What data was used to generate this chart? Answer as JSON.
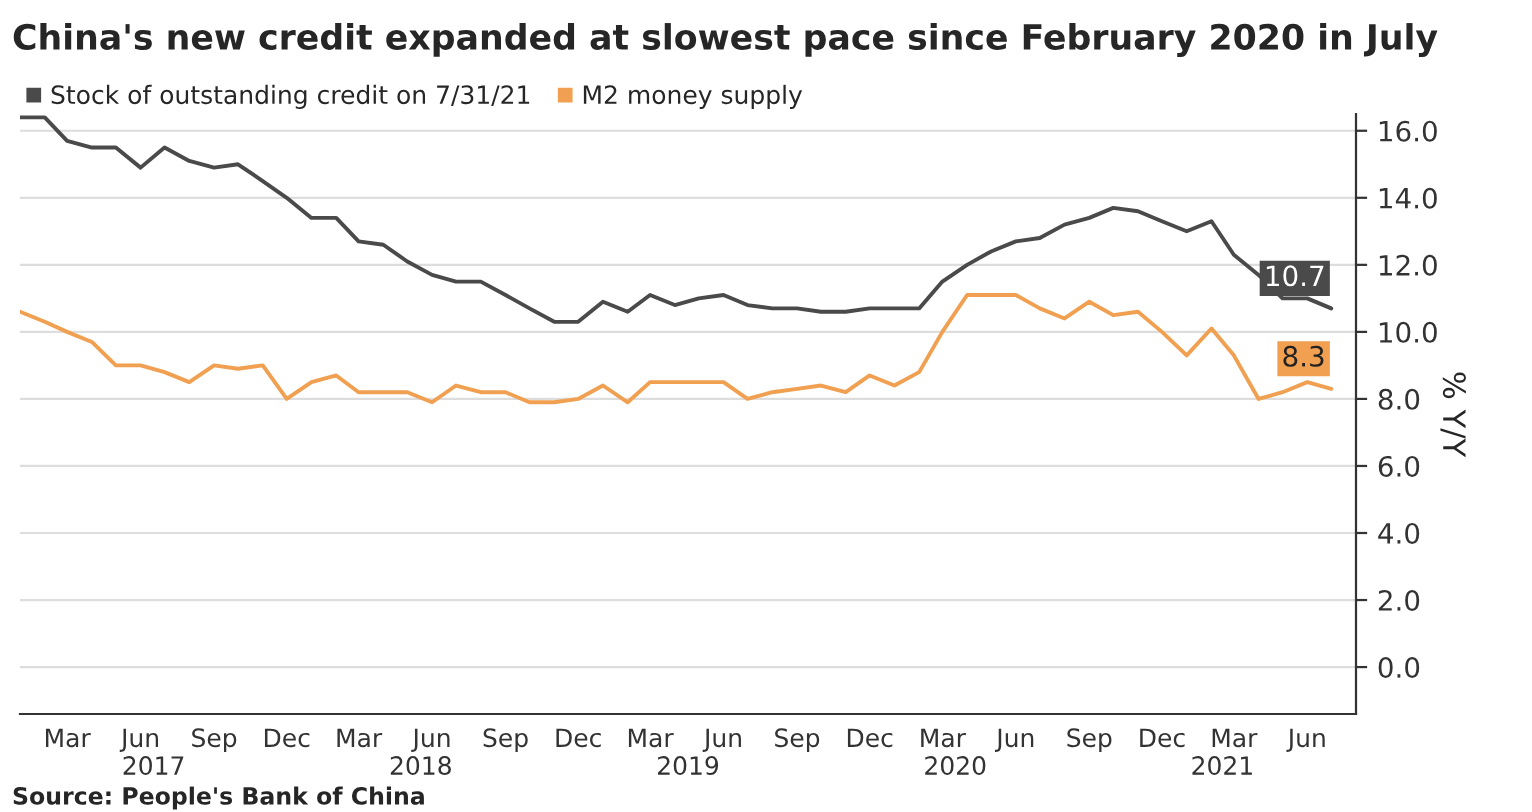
{
  "chart_data": {
    "type": "line",
    "title": "China's new credit expanded at slowest pace since February 2020 in July",
    "x": [
      "2017-01",
      "2017-02",
      "2017-03",
      "2017-04",
      "2017-05",
      "2017-06",
      "2017-07",
      "2017-08",
      "2017-09",
      "2017-10",
      "2017-11",
      "2017-12",
      "2018-01",
      "2018-02",
      "2018-03",
      "2018-04",
      "2018-05",
      "2018-06",
      "2018-07",
      "2018-08",
      "2018-09",
      "2018-10",
      "2018-11",
      "2018-12",
      "2019-01",
      "2019-02",
      "2019-03",
      "2019-04",
      "2019-05",
      "2019-06",
      "2019-07",
      "2019-08",
      "2019-09",
      "2019-10",
      "2019-11",
      "2019-12",
      "2020-01",
      "2020-02",
      "2020-03",
      "2020-04",
      "2020-05",
      "2020-06",
      "2020-07",
      "2020-08",
      "2020-09",
      "2020-10",
      "2020-11",
      "2020-12",
      "2021-01",
      "2021-02",
      "2021-03",
      "2021-04",
      "2021-05",
      "2021-06",
      "2021-07"
    ],
    "series": [
      {
        "name": "Stock of outstanding credit on 7/31/21",
        "color": "#4a4a4a",
        "values": [
          16.4,
          16.4,
          15.7,
          15.5,
          15.5,
          14.9,
          15.5,
          15.1,
          14.9,
          15.0,
          14.5,
          14.0,
          13.4,
          13.4,
          12.7,
          12.6,
          12.1,
          11.7,
          11.5,
          11.5,
          11.1,
          10.7,
          10.3,
          10.3,
          10.9,
          10.6,
          11.1,
          10.8,
          11.0,
          11.1,
          10.8,
          10.7,
          10.7,
          10.6,
          10.6,
          10.7,
          10.7,
          10.7,
          11.5,
          12.0,
          12.4,
          12.7,
          12.8,
          13.2,
          13.4,
          13.7,
          13.6,
          13.3,
          13.0,
          13.3,
          12.3,
          11.7,
          11.0,
          11.0,
          10.7
        ],
        "value_labels": [
          null,
          null,
          null,
          null,
          null,
          null,
          null,
          null,
          null,
          null,
          null,
          null,
          null,
          null,
          null,
          null,
          null,
          null,
          null,
          null,
          null,
          null,
          null,
          null,
          null,
          null,
          null,
          null,
          null,
          null,
          null,
          null,
          null,
          null,
          null,
          null,
          null,
          null,
          null,
          null,
          null,
          null,
          null,
          null,
          null,
          null,
          null,
          null,
          null,
          null,
          null,
          null,
          null,
          null,
          "10.7"
        ]
      },
      {
        "name": "M2 money supply",
        "color": "#f0a050",
        "values": [
          10.6,
          10.3,
          10.0,
          9.7,
          9.0,
          9.0,
          8.8,
          8.5,
          9.0,
          8.9,
          9.0,
          8.0,
          8.5,
          8.7,
          8.2,
          8.2,
          8.2,
          7.9,
          8.4,
          8.2,
          8.2,
          7.9,
          7.9,
          8.0,
          8.4,
          7.9,
          8.5,
          8.5,
          8.5,
          8.5,
          8.0,
          8.2,
          8.3,
          8.4,
          8.2,
          8.7,
          8.4,
          8.8,
          10.0,
          11.1,
          11.1,
          11.1,
          10.7,
          10.4,
          10.9,
          10.5,
          10.6,
          10.0,
          9.3,
          10.1,
          9.3,
          8.0,
          8.2,
          8.5,
          8.3
        ],
        "value_labels": [
          null,
          null,
          null,
          null,
          null,
          null,
          null,
          null,
          null,
          null,
          null,
          null,
          null,
          null,
          null,
          null,
          null,
          null,
          null,
          null,
          null,
          null,
          null,
          null,
          null,
          null,
          null,
          null,
          null,
          null,
          null,
          null,
          null,
          null,
          null,
          null,
          null,
          null,
          null,
          null,
          null,
          null,
          null,
          null,
          null,
          null,
          null,
          null,
          null,
          null,
          null,
          null,
          null,
          null,
          "8.3"
        ]
      }
    ],
    "ylabel": "% Y/Y",
    "ylim": [
      -1.4,
      16.5
    ],
    "yticks": [
      {
        "value": 0,
        "label": "0.0"
      },
      {
        "value": 2,
        "label": "2.0"
      },
      {
        "value": 4,
        "label": "4.0"
      },
      {
        "value": 6,
        "label": "6.0"
      },
      {
        "value": 8,
        "label": "8.0"
      },
      {
        "value": 10,
        "label": "10.0"
      },
      {
        "value": 12,
        "label": "12.0"
      },
      {
        "value": 14,
        "label": "14.0"
      },
      {
        "value": 16,
        "label": "16.0"
      }
    ],
    "xlim": [
      "2017-01",
      "2021-08"
    ],
    "xticks": [
      {
        "value": "2017-03",
        "label": "Mar"
      },
      {
        "value": "2017-06",
        "label": "Jun"
      },
      {
        "value": "2017-09",
        "label": "Sep"
      },
      {
        "value": "2017-12",
        "label": "Dec"
      },
      {
        "value": "2018-03",
        "label": "Mar"
      },
      {
        "value": "2018-06",
        "label": "Jun"
      },
      {
        "value": "2018-09",
        "label": "Sep"
      },
      {
        "value": "2018-12",
        "label": "Dec"
      },
      {
        "value": "2019-03",
        "label": "Mar"
      },
      {
        "value": "2019-06",
        "label": "Jun"
      },
      {
        "value": "2019-09",
        "label": "Sep"
      },
      {
        "value": "2019-12",
        "label": "Dec"
      },
      {
        "value": "2020-03",
        "label": "Mar"
      },
      {
        "value": "2020-06",
        "label": "Jun"
      },
      {
        "value": "2020-09",
        "label": "Sep"
      },
      {
        "value": "2020-12",
        "label": "Dec"
      },
      {
        "value": "2021-03",
        "label": "Mar"
      },
      {
        "value": "2021-06",
        "label": "Jun"
      }
    ],
    "grid": "y",
    "legend": "top left",
    "line_style": "solid",
    "marker": "none",
    "annotations": [
      "2017",
      "2018",
      "2019",
      "2020",
      "2021",
      "Source: People's Bank of China"
    ]
  }
}
